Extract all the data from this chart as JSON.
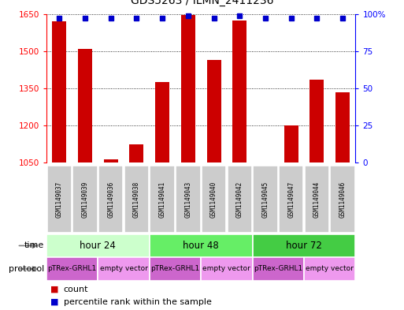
{
  "title": "GDS5263 / ILMN_2411236",
  "samples": [
    "GSM1149037",
    "GSM1149039",
    "GSM1149036",
    "GSM1149038",
    "GSM1149041",
    "GSM1149043",
    "GSM1149040",
    "GSM1149042",
    "GSM1149045",
    "GSM1149047",
    "GSM1149044",
    "GSM1149046"
  ],
  "counts": [
    1620,
    1510,
    1063,
    1125,
    1375,
    1645,
    1465,
    1625,
    1050,
    1200,
    1385,
    1335
  ],
  "percentile": [
    97,
    97,
    97,
    97,
    97,
    99,
    97,
    99,
    97,
    97,
    97,
    97
  ],
  "ylim_left": [
    1050,
    1650
  ],
  "ylim_right": [
    0,
    100
  ],
  "yticks_left": [
    1050,
    1200,
    1350,
    1500,
    1650
  ],
  "yticks_right": [
    0,
    25,
    50,
    75,
    100
  ],
  "bar_color": "#cc0000",
  "dot_color": "#0000cc",
  "time_colors": [
    "#ccffcc",
    "#66ee66",
    "#44cc44"
  ],
  "time_groups": [
    {
      "label": "hour 24",
      "start": 0,
      "end": 4
    },
    {
      "label": "hour 48",
      "start": 4,
      "end": 8
    },
    {
      "label": "hour 72",
      "start": 8,
      "end": 12
    }
  ],
  "protocol_groups": [
    {
      "label": "pTRex-GRHL1",
      "start": 0,
      "end": 2,
      "color": "#cc66cc"
    },
    {
      "label": "empty vector",
      "start": 2,
      "end": 4,
      "color": "#ee99ee"
    },
    {
      "label": "pTRex-GRHL1",
      "start": 4,
      "end": 6,
      "color": "#cc66cc"
    },
    {
      "label": "empty vector",
      "start": 6,
      "end": 8,
      "color": "#ee99ee"
    },
    {
      "label": "pTRex-GRHL1",
      "start": 8,
      "end": 10,
      "color": "#cc66cc"
    },
    {
      "label": "empty vector",
      "start": 10,
      "end": 12,
      "color": "#ee99ee"
    }
  ],
  "legend_count_color": "#cc0000",
  "legend_dot_color": "#0000cc",
  "bg_color": "#ffffff",
  "sample_box_color": "#cccccc"
}
